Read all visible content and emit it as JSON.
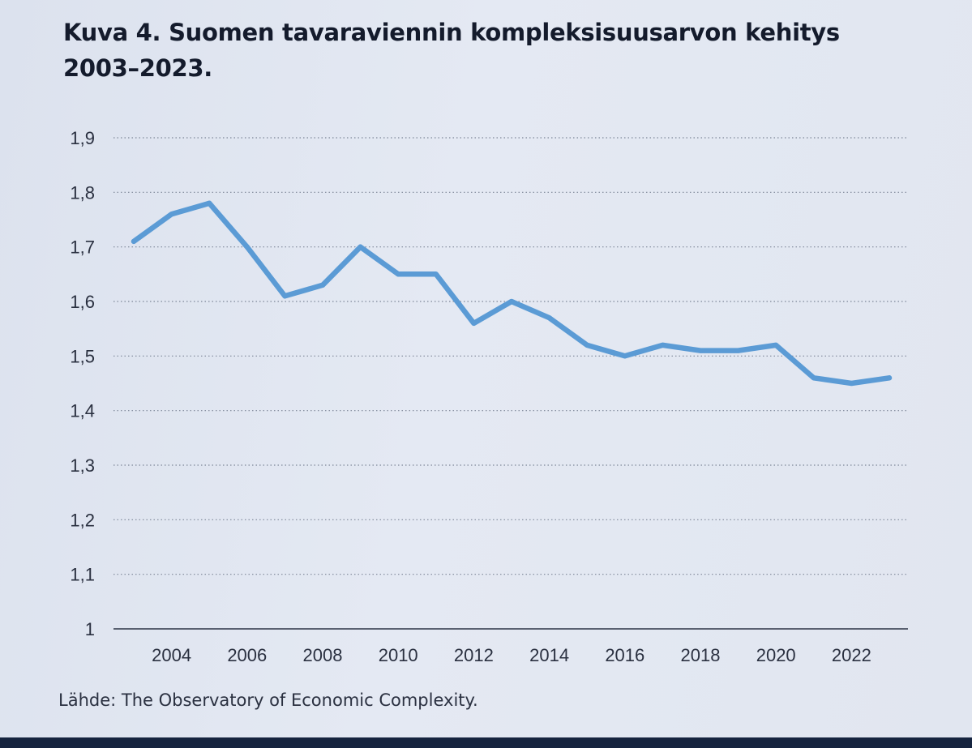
{
  "chart_data": {
    "type": "line",
    "title_line1": "Kuva 4. Suomen tavaraviennin kompleksisuusarvon kehitys",
    "title_line2": "2003–2023.",
    "xlabel": "",
    "ylabel": "",
    "ylim": [
      1,
      1.9
    ],
    "y_ticks": [
      {
        "value": 1.0,
        "label": "1"
      },
      {
        "value": 1.1,
        "label": "1,1"
      },
      {
        "value": 1.2,
        "label": "1,2"
      },
      {
        "value": 1.3,
        "label": "1,3"
      },
      {
        "value": 1.4,
        "label": "1,4"
      },
      {
        "value": 1.5,
        "label": "1,5"
      },
      {
        "value": 1.6,
        "label": "1,6"
      },
      {
        "value": 1.7,
        "label": "1,7"
      },
      {
        "value": 1.8,
        "label": "1,8"
      },
      {
        "value": 1.9,
        "label": "1,9"
      }
    ],
    "x_tick_labels": [
      "2004",
      "2006",
      "2008",
      "2010",
      "2012",
      "2014",
      "2016",
      "2018",
      "2020",
      "2022"
    ],
    "grid": true,
    "series": [
      {
        "name": "Kompleksisuusarvo",
        "color": "#5b9bd5",
        "x": [
          2003,
          2004,
          2005,
          2006,
          2007,
          2008,
          2009,
          2010,
          2011,
          2012,
          2013,
          2014,
          2015,
          2016,
          2017,
          2018,
          2019,
          2020,
          2021,
          2022,
          2023
        ],
        "values": [
          1.71,
          1.76,
          1.78,
          1.7,
          1.61,
          1.63,
          1.7,
          1.65,
          1.65,
          1.56,
          1.6,
          1.57,
          1.52,
          1.5,
          1.52,
          1.51,
          1.51,
          1.52,
          1.46,
          1.45,
          1.46
        ]
      }
    ],
    "source": "Lähde: The Observatory of Economic Complexity."
  }
}
